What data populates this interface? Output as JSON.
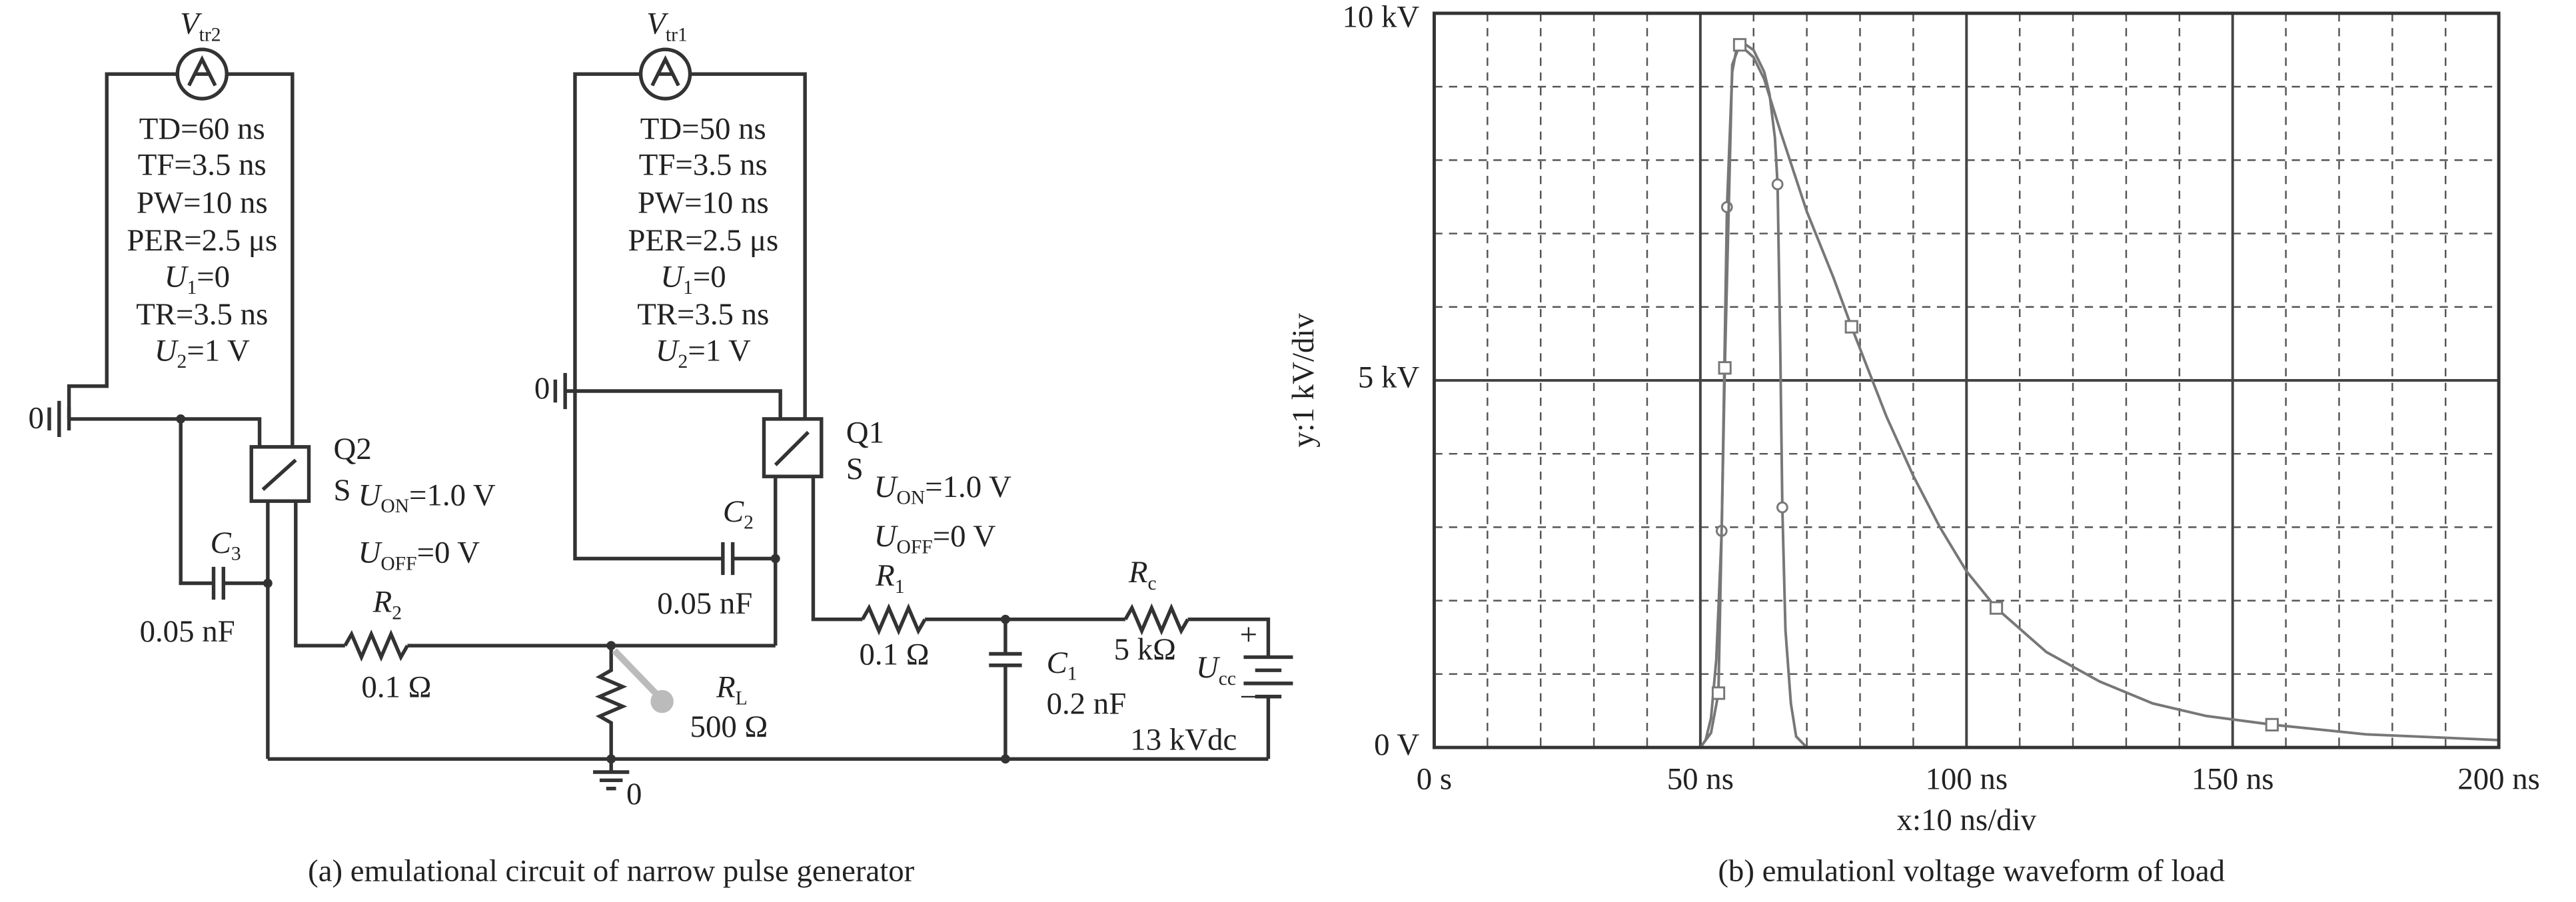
{
  "circuit": {
    "labels": [
      {
        "text": "V",
        "sub": "tr2"
      },
      {
        "text": "V",
        "sub": "tr1"
      },
      {
        "text": "TD=60 ns"
      },
      {
        "text": "TF=3.5 ns"
      },
      {
        "text": "PW=10 ns"
      },
      {
        "text": "PER=2.5 μs"
      },
      {
        "text": "U",
        "sub": "1",
        "tail": "=0"
      },
      {
        "text": "TR=3.5 ns"
      },
      {
        "text": "U",
        "sub": "2",
        "tail": "=1 V"
      },
      {
        "text": "TD=50 ns"
      },
      {
        "text": "TF=3.5 ns"
      },
      {
        "text": "PW=10 ns"
      },
      {
        "text": "PER=2.5 μs"
      },
      {
        "text": "U",
        "sub": "1",
        "tail": "=0"
      },
      {
        "text": "TR=3.5 ns"
      },
      {
        "text": "U",
        "sub": "2",
        "tail": "=1 V"
      },
      {
        "text": "0"
      },
      {
        "text": "0"
      },
      {
        "text": "Q2"
      },
      {
        "text": "S"
      },
      {
        "text": "U",
        "sub": "ON",
        "tail": "=1.0 V"
      },
      {
        "text": "U",
        "sub": "OFF",
        "tail": "=0 V"
      },
      {
        "text": "Q1"
      },
      {
        "text": "S"
      },
      {
        "text": "U",
        "sub": "ON",
        "tail": "=1.0 V"
      },
      {
        "text": "U",
        "sub": "OFF",
        "tail": "=0 V"
      },
      {
        "text": "C",
        "sub": "3"
      },
      {
        "text": "0.05 nF"
      },
      {
        "text": "C",
        "sub": "2"
      },
      {
        "text": "0.05 nF"
      },
      {
        "text": "R",
        "sub": "2"
      },
      {
        "text": "0.1 Ω"
      },
      {
        "text": "R",
        "sub": "1"
      },
      {
        "text": "0.1 Ω"
      },
      {
        "text": "R",
        "sub": "L"
      },
      {
        "text": "500 Ω"
      },
      {
        "text": "C",
        "sub": "1"
      },
      {
        "text": "0.2 nF"
      },
      {
        "text": "R",
        "sub": "c"
      },
      {
        "text": "5 kΩ"
      },
      {
        "text": "U",
        "sub": "cc"
      },
      {
        "text": "+"
      },
      {
        "text": "−"
      },
      {
        "text": "13 kVdc"
      },
      {
        "text": "0"
      }
    ],
    "caption": "(a) emulational circuit  of narrow pulse generator"
  },
  "chart_data": {
    "type": "line",
    "caption": "(b)  emulationl voltage waveform of load",
    "xlabel": "x:10 ns/div",
    "ylabel": "y:1 kV/div",
    "xlim": [
      0,
      200
    ],
    "ylim": [
      0,
      10
    ],
    "xticks": [
      {
        "value": 0,
        "label": "0 s"
      },
      {
        "value": 50,
        "label": "50 ns"
      },
      {
        "value": 100,
        "label": "100 ns"
      },
      {
        "value": 150,
        "label": "150 ns"
      },
      {
        "value": 200,
        "label": "200 ns"
      }
    ],
    "yticks": [
      {
        "value": 0,
        "label": "0 V"
      },
      {
        "value": 5,
        "label": "5 kV"
      },
      {
        "value": 10,
        "label": "10 kV"
      }
    ],
    "minor_xticks": [
      10,
      20,
      30,
      40,
      60,
      70,
      80,
      90,
      110,
      120,
      130,
      140,
      160,
      170,
      180,
      190
    ],
    "minor_yticks": [
      1,
      2,
      3,
      4,
      6,
      7,
      8,
      9
    ],
    "grid": true,
    "series": [
      {
        "color": "#777777",
        "marker": "circle",
        "x": [
          0,
          50,
          51,
          52,
          53,
          54,
          55,
          56,
          57,
          58,
          60,
          62,
          63,
          64,
          64.5,
          65,
          65.4,
          66,
          67,
          68,
          70,
          200
        ],
        "values": [
          0,
          0,
          0.1,
          0.4,
          1.2,
          2.95,
          7.36,
          9.2,
          9.6,
          9.6,
          9.5,
          9.2,
          8.9,
          8.3,
          7.67,
          5.5,
          3.27,
          1.6,
          0.6,
          0.15,
          0,
          0
        ],
        "markers": {
          "x": [
            54,
            55,
            64.5,
            65.4
          ],
          "values": [
            2.95,
            7.36,
            7.67,
            3.27
          ]
        }
      },
      {
        "color": "#777777",
        "marker": "square",
        "x": [
          0,
          50,
          52,
          53.4,
          54.6,
          56,
          57.4,
          60,
          62,
          65,
          70,
          75,
          78.4,
          85,
          90,
          95,
          100,
          105.6,
          115,
          125,
          135,
          145,
          157.4,
          175,
          200
        ],
        "values": [
          0,
          0,
          0.2,
          0.74,
          5.17,
          9.3,
          9.57,
          9.4,
          9.1,
          8.4,
          7.3,
          6.4,
          5.73,
          4.5,
          3.7,
          3.0,
          2.4,
          1.9,
          1.3,
          0.9,
          0.6,
          0.43,
          0.31,
          0.18,
          0.1
        ],
        "markers": {
          "x": [
            53.4,
            54.6,
            57.4,
            78.4,
            105.6,
            157.4
          ],
          "values": [
            0.74,
            5.17,
            9.57,
            5.73,
            1.9,
            0.31
          ]
        }
      }
    ]
  }
}
